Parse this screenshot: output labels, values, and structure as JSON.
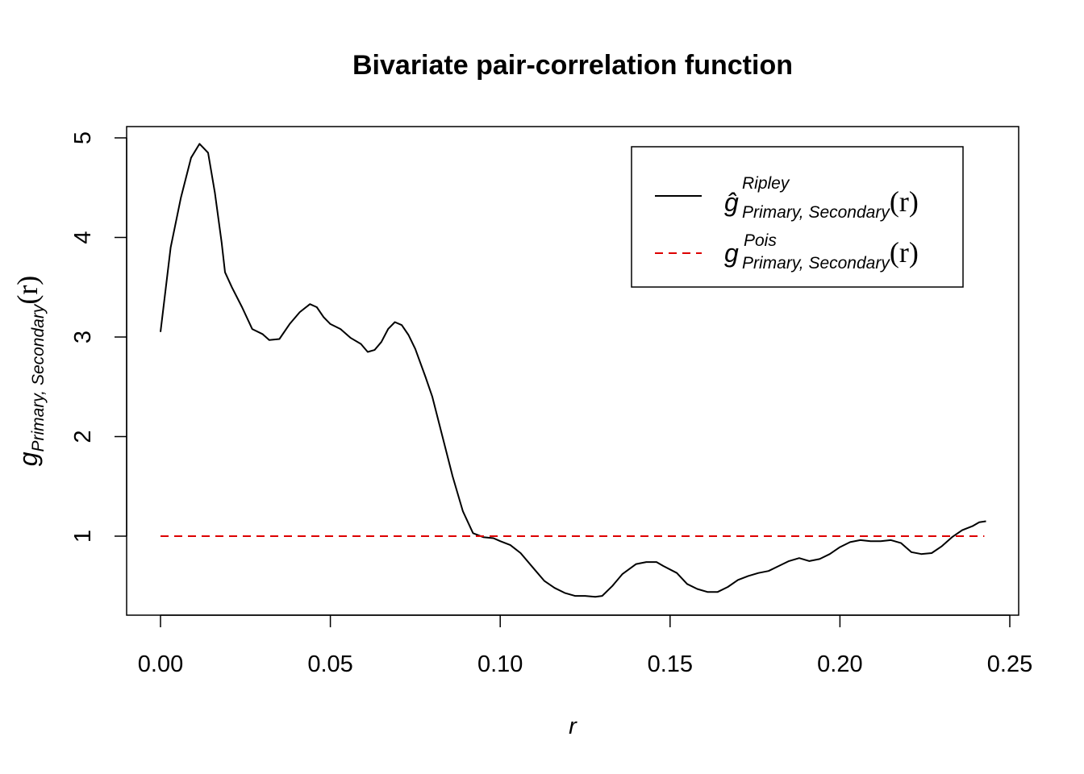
{
  "chart_data": {
    "type": "line",
    "title": "Bivariate pair-correlation function",
    "xlabel": "r",
    "ylabel": {
      "base": "g",
      "sub": "Primary, Secondary",
      "arg": "(r)"
    },
    "xlim": [
      0,
      0.25
    ],
    "ylim": [
      0.25,
      5.1
    ],
    "x_ticks": [
      "0.00",
      "0.05",
      "0.10",
      "0.15",
      "0.20",
      "0.25"
    ],
    "x_tick_values": [
      0,
      0.05,
      0.1,
      0.15,
      0.2,
      0.25
    ],
    "y_ticks": [
      "1",
      "2",
      "3",
      "4",
      "5"
    ],
    "y_tick_values": [
      1,
      2,
      3,
      4,
      5
    ],
    "grid": false,
    "legend_position": "top-right",
    "legend": [
      {
        "base": "ĝ",
        "sup": "Ripley",
        "sub": "Primary, Secondary",
        "arg": "(r)",
        "line": "solid",
        "color": "#000000"
      },
      {
        "base": "g",
        "sup": "Pois",
        "sub": "Primary, Secondary",
        "arg": "(r)",
        "line": "dashed",
        "color": "#dd0000"
      }
    ],
    "series": [
      {
        "line": "solid",
        "color": "#000000",
        "x": [
          0.0,
          0.003,
          0.006,
          0.009,
          0.0115,
          0.014,
          0.016,
          0.018,
          0.019,
          0.021,
          0.024,
          0.027,
          0.03,
          0.032,
          0.035,
          0.038,
          0.041,
          0.044,
          0.046,
          0.048,
          0.05,
          0.053,
          0.056,
          0.059,
          0.061,
          0.063,
          0.065,
          0.067,
          0.069,
          0.071,
          0.073,
          0.075,
          0.078,
          0.08,
          0.083,
          0.086,
          0.089,
          0.092,
          0.095,
          0.098,
          0.1,
          0.103,
          0.106,
          0.11,
          0.113,
          0.116,
          0.119,
          0.122,
          0.125,
          0.128,
          0.13,
          0.133,
          0.136,
          0.14,
          0.143,
          0.146,
          0.148,
          0.152,
          0.155,
          0.158,
          0.161,
          0.164,
          0.167,
          0.17,
          0.173,
          0.176,
          0.179,
          0.182,
          0.185,
          0.188,
          0.191,
          0.194,
          0.197,
          0.2,
          0.203,
          0.206,
          0.209,
          0.212,
          0.215,
          0.218,
          0.221,
          0.224,
          0.227,
          0.23,
          0.233,
          0.236,
          0.239,
          0.241,
          0.243
        ],
        "y": [
          3.05,
          3.9,
          4.4,
          4.8,
          4.94,
          4.85,
          4.45,
          3.95,
          3.65,
          3.5,
          3.3,
          3.08,
          3.03,
          2.97,
          2.98,
          3.13,
          3.25,
          3.33,
          3.3,
          3.2,
          3.13,
          3.08,
          2.99,
          2.93,
          2.85,
          2.87,
          2.95,
          3.08,
          3.15,
          3.12,
          3.02,
          2.88,
          2.6,
          2.4,
          2.0,
          1.6,
          1.25,
          1.03,
          0.99,
          0.98,
          0.95,
          0.91,
          0.83,
          0.67,
          0.55,
          0.48,
          0.43,
          0.4,
          0.4,
          0.39,
          0.4,
          0.5,
          0.62,
          0.72,
          0.74,
          0.74,
          0.7,
          0.63,
          0.52,
          0.47,
          0.44,
          0.44,
          0.49,
          0.56,
          0.6,
          0.63,
          0.65,
          0.7,
          0.75,
          0.78,
          0.75,
          0.77,
          0.82,
          0.89,
          0.94,
          0.96,
          0.95,
          0.95,
          0.96,
          0.93,
          0.84,
          0.82,
          0.83,
          0.9,
          0.99,
          1.06,
          1.1,
          1.14,
          1.15
        ]
      },
      {
        "line": "dashed",
        "color": "#dd0000",
        "x": [
          0.0,
          0.2425
        ],
        "y": [
          1.0,
          1.0
        ]
      }
    ]
  }
}
